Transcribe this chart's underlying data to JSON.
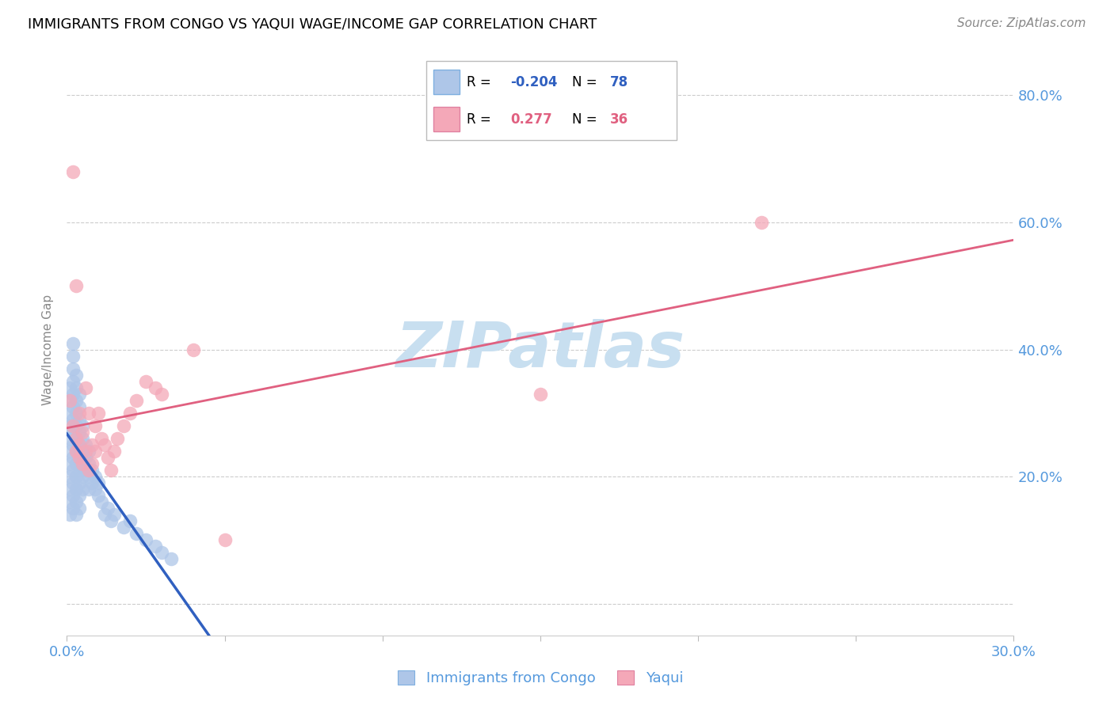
{
  "title": "IMMIGRANTS FROM CONGO VS YAQUI WAGE/INCOME GAP CORRELATION CHART",
  "source": "Source: ZipAtlas.com",
  "ylabel": "Wage/Income Gap",
  "x_min": 0.0,
  "x_max": 0.3,
  "y_min": -0.05,
  "y_max": 0.85,
  "x_ticks": [
    0.0,
    0.05,
    0.1,
    0.15,
    0.2,
    0.25,
    0.3
  ],
  "y_ticks": [
    0.0,
    0.2,
    0.4,
    0.6,
    0.8
  ],
  "y_tick_labels": [
    "",
    "20.0%",
    "40.0%",
    "60.0%",
    "80.0%"
  ],
  "congo_R": -0.204,
  "congo_N": 78,
  "yaqui_R": 0.277,
  "yaqui_N": 36,
  "congo_color": "#aec6e8",
  "yaqui_color": "#f4a8b8",
  "congo_line_color": "#3060c0",
  "yaqui_line_color": "#e06080",
  "watermark": "ZIPatlas",
  "watermark_color": "#c8dff0",
  "congo_x": [
    0.001,
    0.001,
    0.001,
    0.001,
    0.001,
    0.001,
    0.001,
    0.001,
    0.001,
    0.001,
    0.001,
    0.002,
    0.002,
    0.002,
    0.002,
    0.002,
    0.002,
    0.002,
    0.002,
    0.002,
    0.002,
    0.002,
    0.002,
    0.002,
    0.002,
    0.003,
    0.003,
    0.003,
    0.003,
    0.003,
    0.003,
    0.003,
    0.003,
    0.003,
    0.003,
    0.003,
    0.003,
    0.004,
    0.004,
    0.004,
    0.004,
    0.004,
    0.004,
    0.004,
    0.004,
    0.004,
    0.004,
    0.005,
    0.005,
    0.005,
    0.005,
    0.005,
    0.005,
    0.006,
    0.006,
    0.006,
    0.007,
    0.007,
    0.007,
    0.007,
    0.008,
    0.008,
    0.009,
    0.009,
    0.01,
    0.01,
    0.011,
    0.012,
    0.013,
    0.014,
    0.015,
    0.018,
    0.02,
    0.022,
    0.025,
    0.028,
    0.03,
    0.033
  ],
  "congo_y": [
    0.26,
    0.24,
    0.22,
    0.28,
    0.2,
    0.18,
    0.16,
    0.14,
    0.3,
    0.32,
    0.34,
    0.25,
    0.23,
    0.27,
    0.21,
    0.29,
    0.31,
    0.19,
    0.17,
    0.15,
    0.33,
    0.35,
    0.37,
    0.39,
    0.41,
    0.24,
    0.26,
    0.22,
    0.28,
    0.2,
    0.18,
    0.3,
    0.32,
    0.16,
    0.34,
    0.14,
    0.36,
    0.25,
    0.23,
    0.27,
    0.21,
    0.19,
    0.29,
    0.17,
    0.31,
    0.15,
    0.33,
    0.24,
    0.22,
    0.26,
    0.2,
    0.18,
    0.28,
    0.23,
    0.25,
    0.21,
    0.22,
    0.24,
    0.2,
    0.18,
    0.21,
    0.19,
    0.2,
    0.18,
    0.19,
    0.17,
    0.16,
    0.14,
    0.15,
    0.13,
    0.14,
    0.12,
    0.13,
    0.11,
    0.1,
    0.09,
    0.08,
    0.07
  ],
  "yaqui_x": [
    0.001,
    0.002,
    0.002,
    0.003,
    0.003,
    0.003,
    0.004,
    0.004,
    0.004,
    0.005,
    0.005,
    0.006,
    0.006,
    0.007,
    0.007,
    0.008,
    0.008,
    0.009,
    0.009,
    0.01,
    0.011,
    0.012,
    0.013,
    0.014,
    0.015,
    0.016,
    0.018,
    0.02,
    0.022,
    0.025,
    0.028,
    0.03,
    0.04,
    0.05,
    0.15,
    0.22
  ],
  "yaqui_y": [
    0.32,
    0.28,
    0.68,
    0.26,
    0.24,
    0.5,
    0.3,
    0.25,
    0.23,
    0.27,
    0.22,
    0.34,
    0.24,
    0.3,
    0.21,
    0.25,
    0.22,
    0.28,
    0.24,
    0.3,
    0.26,
    0.25,
    0.23,
    0.21,
    0.24,
    0.26,
    0.28,
    0.3,
    0.32,
    0.35,
    0.34,
    0.33,
    0.4,
    0.1,
    0.33,
    0.6
  ]
}
